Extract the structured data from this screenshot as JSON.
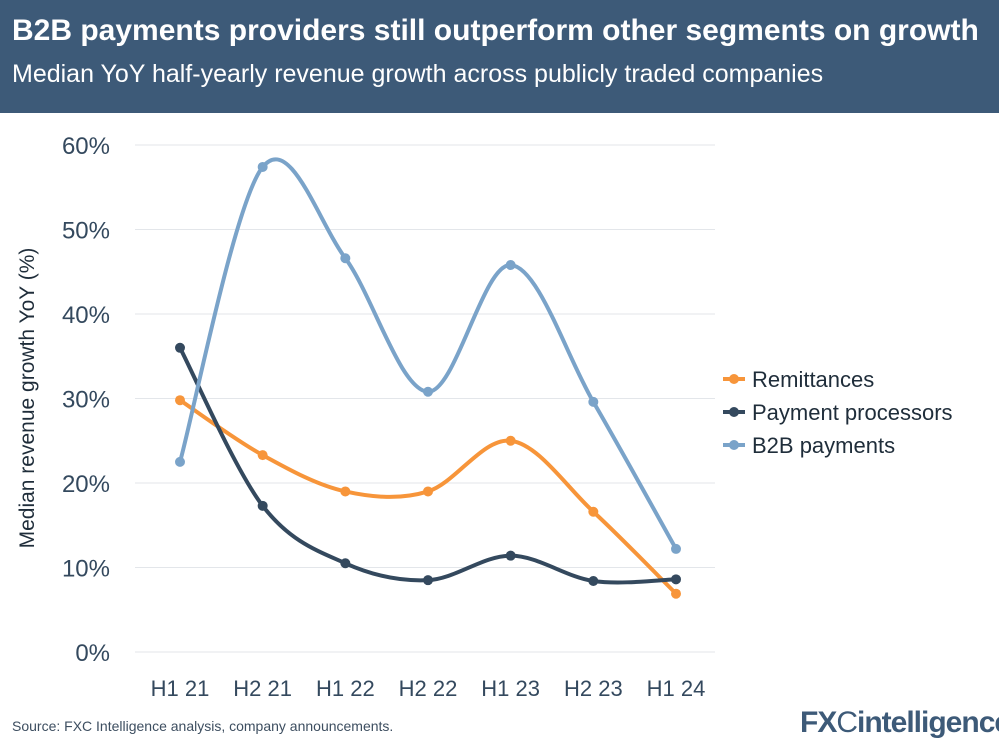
{
  "header": {
    "title": "B2B payments providers still outperform other segments on growth",
    "subtitle": "Median YoY half-yearly revenue growth across publicly traded companies"
  },
  "footer": {
    "source": "Source: FXC Intelligence analysis, company announcements.",
    "logo": "FXCintelligence"
  },
  "chart_data": {
    "type": "line",
    "ylabel": "Median revenue growth YoY (%)",
    "categories": [
      "H1 21",
      "H2 21",
      "H1 22",
      "H2 22",
      "H1 23",
      "H2 23",
      "H1 24"
    ],
    "ylim": [
      0,
      60
    ],
    "yticks": [
      "0%",
      "10%",
      "20%",
      "30%",
      "40%",
      "50%",
      "60%"
    ],
    "grid": true,
    "legend": "right",
    "series": [
      {
        "name": "Remittances",
        "color": "#f7953a",
        "values": [
          29.8,
          23.3,
          19.0,
          19.0,
          25.0,
          16.6,
          6.9
        ]
      },
      {
        "name": "Payment processors",
        "color": "#34495e",
        "values": [
          36.0,
          17.3,
          10.5,
          8.5,
          11.4,
          8.4,
          8.6
        ]
      },
      {
        "name": "B2B payments",
        "color": "#7aa3c9",
        "values": [
          22.5,
          57.4,
          46.6,
          30.8,
          45.8,
          29.6,
          12.2
        ]
      }
    ]
  }
}
